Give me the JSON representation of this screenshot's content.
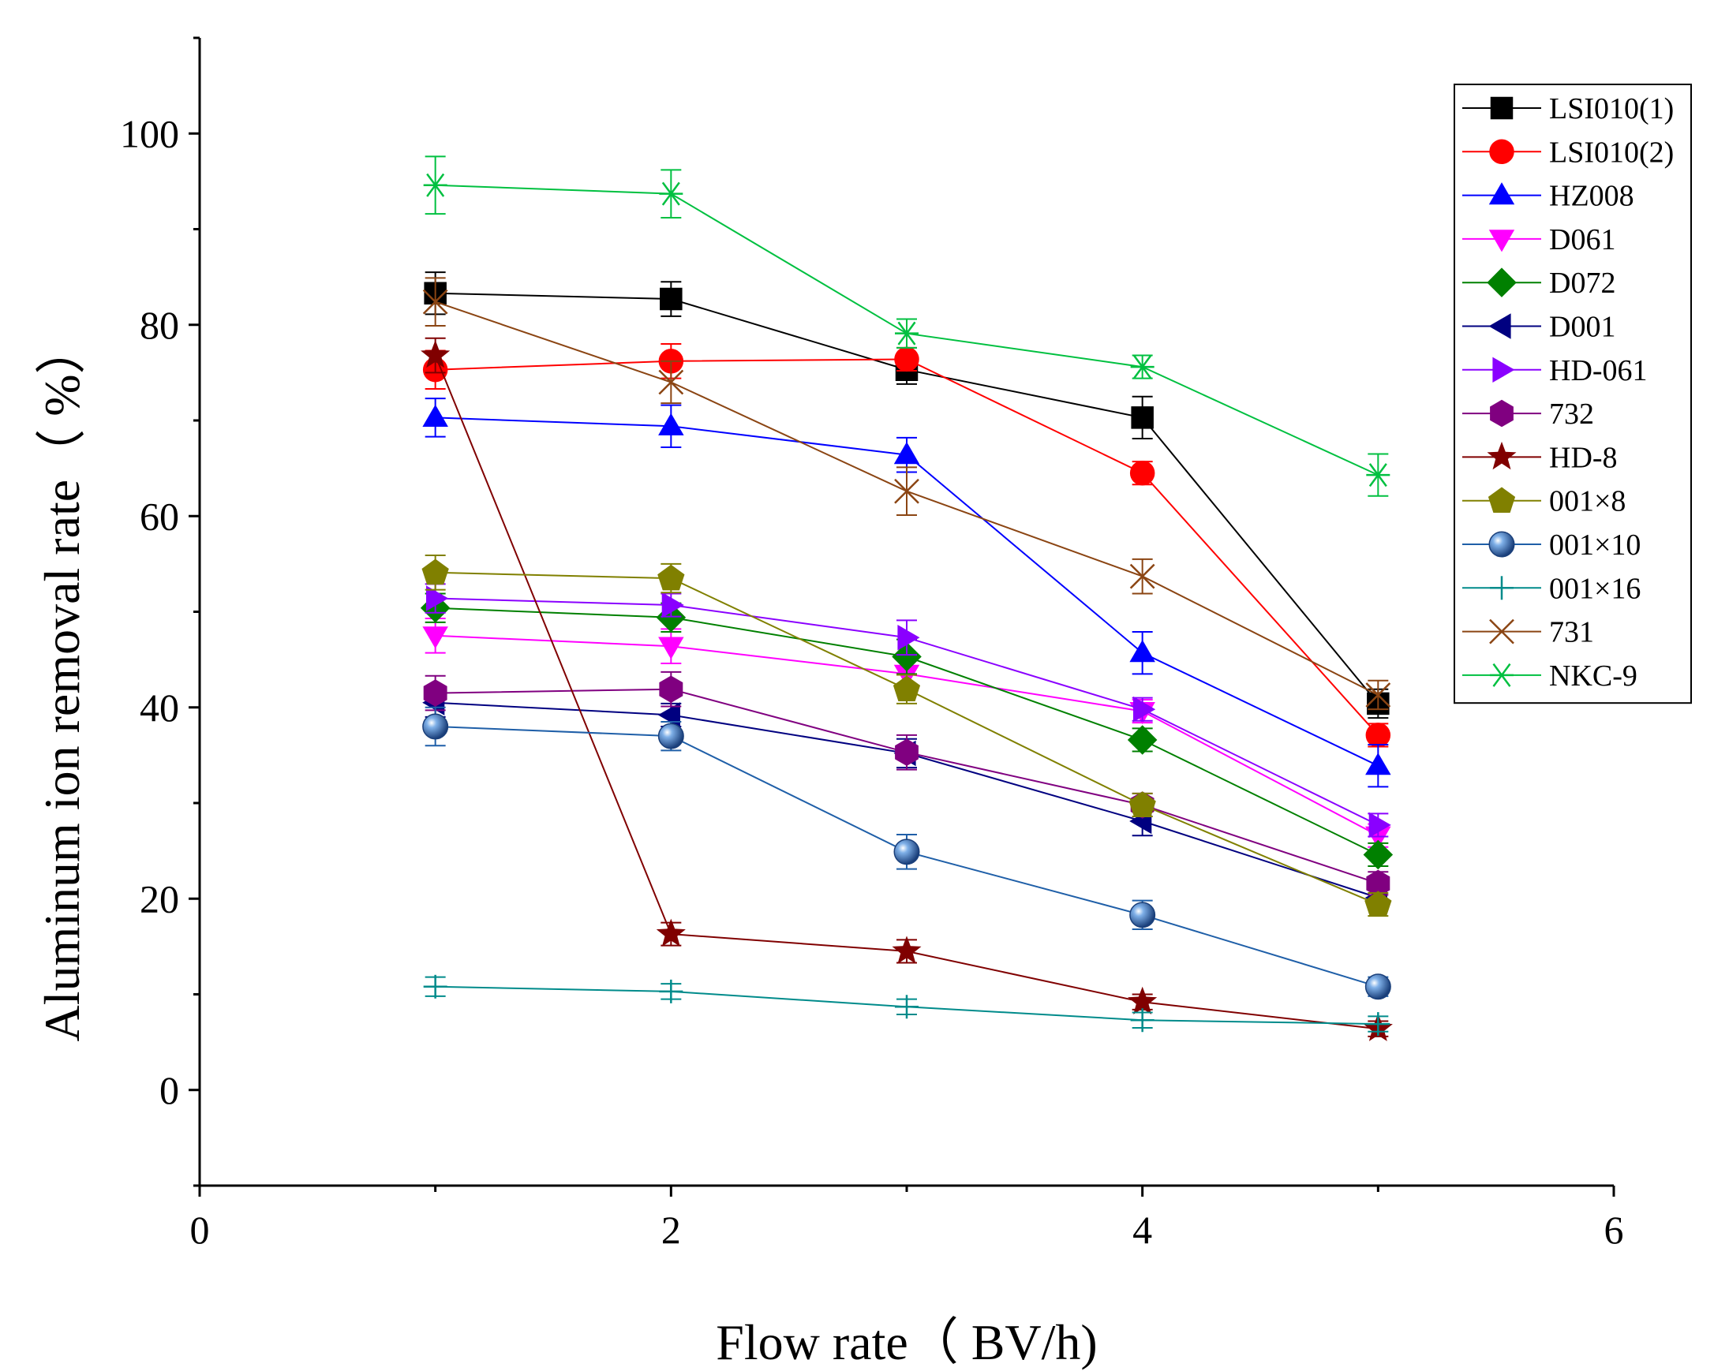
{
  "chart_data": {
    "type": "line",
    "xlabel": "Flow rate（ BV/h)",
    "ylabel": "Aluminum ion removal rate（ %）",
    "xlim": [
      0,
      6
    ],
    "ylim": [
      -10,
      110
    ],
    "xticks": [
      0,
      2,
      4,
      6
    ],
    "yticks": [
      0,
      20,
      40,
      60,
      80,
      100
    ],
    "x": [
      1,
      2,
      3,
      4,
      5
    ],
    "legend_position": "top-right",
    "grid": false,
    "series": [
      {
        "name": "LSI010(1)",
        "color": "#000000",
        "marker": "square",
        "values": [
          83.3,
          82.7,
          75.3,
          70.3,
          40.4
        ],
        "err": [
          2.2,
          1.8,
          1.5,
          2.2,
          1.5
        ]
      },
      {
        "name": "LSI010(2)",
        "color": "#ff0000",
        "marker": "circle",
        "values": [
          75.3,
          76.2,
          76.4,
          64.5,
          37.1
        ],
        "err": [
          2.0,
          1.8,
          1.2,
          1.2,
          1.2
        ]
      },
      {
        "name": "HZ008",
        "color": "#0000ff",
        "marker": "triangle-up",
        "values": [
          70.3,
          69.4,
          66.4,
          45.7,
          33.9
        ],
        "err": [
          2.0,
          2.2,
          1.8,
          2.2,
          2.2
        ]
      },
      {
        "name": "D061",
        "color": "#ff00ff",
        "marker": "triangle-down",
        "values": [
          47.5,
          46.4,
          43.5,
          39.6,
          26.6
        ],
        "err": [
          1.8,
          1.8,
          1.8,
          1.2,
          1.2
        ]
      },
      {
        "name": "D072",
        "color": "#008000",
        "marker": "diamond",
        "values": [
          50.4,
          49.4,
          45.3,
          36.6,
          24.6
        ],
        "err": [
          1.5,
          1.5,
          1.8,
          1.2,
          1.2
        ]
      },
      {
        "name": "D001",
        "color": "#000080",
        "marker": "triangle-left",
        "values": [
          40.5,
          39.2,
          35.2,
          28.1,
          20.1
        ],
        "err": [
          1.5,
          1.2,
          1.5,
          1.5,
          1.0
        ]
      },
      {
        "name": "HD-061",
        "color": "#8a00ff",
        "marker": "triangle-right",
        "values": [
          51.4,
          50.7,
          47.3,
          39.8,
          27.7
        ],
        "err": [
          1.5,
          1.2,
          1.8,
          1.2,
          1.2
        ]
      },
      {
        "name": "732",
        "color": "#800080",
        "marker": "hexagon",
        "values": [
          41.5,
          41.9,
          35.3,
          29.8,
          21.6
        ],
        "err": [
          1.8,
          1.8,
          1.8,
          1.2,
          1.2
        ]
      },
      {
        "name": "HD-8",
        "color": "#800000",
        "marker": "star",
        "values": [
          76.8,
          16.3,
          14.5,
          9.2,
          6.4
        ],
        "err": [
          1.8,
          1.2,
          1.2,
          0.8,
          0.8
        ]
      },
      {
        "name": "001×8",
        "color": "#808000",
        "marker": "pentagon",
        "values": [
          54.1,
          53.5,
          41.9,
          29.8,
          19.4
        ],
        "err": [
          1.8,
          1.5,
          1.5,
          1.2,
          1.2
        ]
      },
      {
        "name": "001×10",
        "color": "#1f5fa8",
        "marker": "sphere",
        "values": [
          38.0,
          37.0,
          24.9,
          18.3,
          10.8
        ],
        "err": [
          2.0,
          1.5,
          1.8,
          1.5,
          1.0
        ]
      },
      {
        "name": "001×16",
        "color": "#008b8b",
        "marker": "plus",
        "values": [
          10.8,
          10.3,
          8.7,
          7.3,
          6.9
        ],
        "err": [
          1.0,
          0.8,
          0.8,
          0.8,
          0.8
        ]
      },
      {
        "name": "731",
        "color": "#8b4513",
        "marker": "x",
        "values": [
          82.4,
          74.0,
          62.6,
          53.7,
          41.3
        ],
        "err": [
          2.5,
          2.2,
          2.5,
          1.8,
          1.5
        ]
      },
      {
        "name": "NKC-9",
        "color": "#00c040",
        "marker": "asterisk",
        "values": [
          94.6,
          93.7,
          79.1,
          75.6,
          64.3
        ],
        "err": [
          3.0,
          2.5,
          1.5,
          1.2,
          2.2
        ]
      }
    ]
  }
}
